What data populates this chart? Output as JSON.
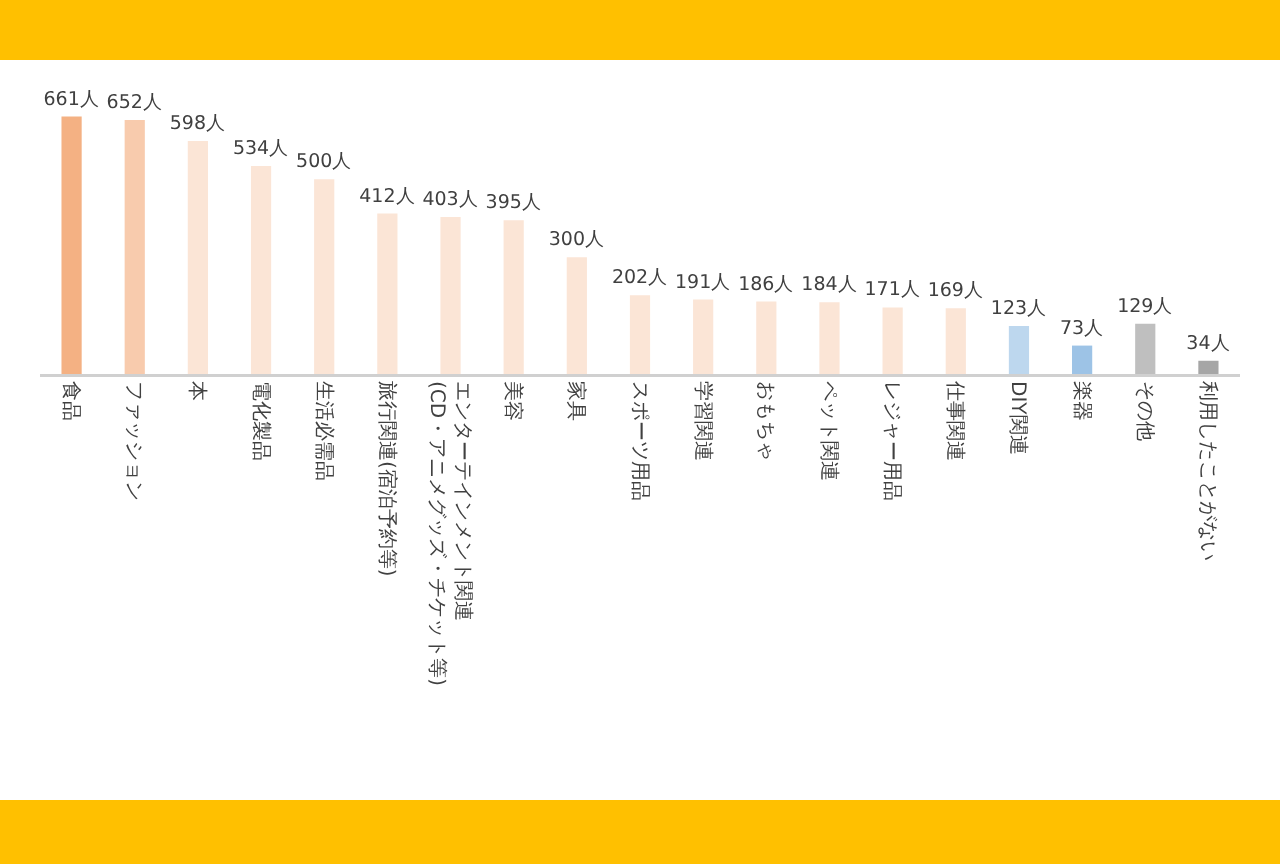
{
  "chart_data": {
    "type": "bar",
    "categories": [
      "食品",
      "ファッション",
      "本",
      "電化製品",
      "生活必需品",
      "旅行関連(宿泊予約等)",
      "エンターテインメント関連(CD・アニメグッズ・チケット等)",
      "美容",
      "家具",
      "スポーツ用品",
      "学習関連",
      "おもちゃ",
      "ペット関連",
      "レジャー用品",
      "仕事関連",
      "DIY関連",
      "楽器",
      "その他",
      "利用したことがない"
    ],
    "values": [
      661,
      652,
      598,
      534,
      500,
      412,
      403,
      395,
      300,
      202,
      191,
      186,
      184,
      171,
      169,
      123,
      73,
      129,
      34
    ],
    "value_labels": [
      "661人",
      "652人",
      "598人",
      "534人",
      "500人",
      "412人",
      "403人",
      "395人",
      "300人",
      "202人",
      "191人",
      "186人",
      "184人",
      "171人",
      "169人",
      "123人",
      "73人",
      "129人",
      "34人"
    ],
    "colors": [
      "#f4b183",
      "#f8cbad",
      "#fbe5d6",
      "#fbe5d6",
      "#fbe5d6",
      "#fbe5d6",
      "#fbe5d6",
      "#fbe5d6",
      "#fbe5d6",
      "#fbe5d6",
      "#fbe5d6",
      "#fbe5d6",
      "#fbe5d6",
      "#fbe5d6",
      "#fbe5d6",
      "#bdd7ee",
      "#9dc3e6",
      "#bfbfbf",
      "#a6a6a6"
    ],
    "grid": false,
    "legend": false
  }
}
